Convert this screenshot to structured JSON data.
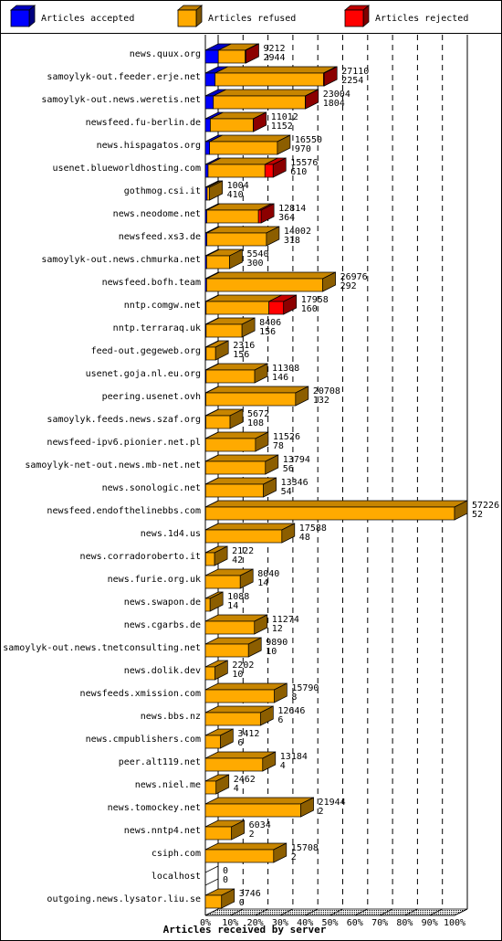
{
  "colors": {
    "accepted": "#0000ff",
    "refused": "#ffaa00",
    "rejected": "#ff0000"
  },
  "chart_data": {
    "type": "bar",
    "orientation": "horizontal",
    "stacked": true,
    "xlabel": "Articles received by server",
    "xlim": [
      0,
      100
    ],
    "x_unit": "%",
    "xticks": [
      "0%",
      "10%",
      "20%",
      "30%",
      "40%",
      "50%",
      "60%",
      "70%",
      "80%",
      "90%",
      "100%"
    ],
    "legend_position": "top",
    "series": [
      {
        "name": "Articles accepted",
        "color": "#0000ff"
      },
      {
        "name": "Articles refused",
        "color": "#ffaa00"
      },
      {
        "name": "Articles rejected",
        "color": "#ff0000"
      }
    ],
    "rows": [
      {
        "server": "news.quux.org",
        "total": 9212,
        "accepted": 2944,
        "acc_pct": 5.2,
        "ref_pct": 10.8,
        "rej_pct": 0.3
      },
      {
        "server": "samoylyk-out.feeder.erje.net",
        "total": 27110,
        "accepted": 2254,
        "acc_pct": 3.9,
        "ref_pct": 43.5,
        "rej_pct": 0.3
      },
      {
        "server": "samoylyk-out.news.weretis.net",
        "total": 23004,
        "accepted": 1804,
        "acc_pct": 3.2,
        "ref_pct": 36.9,
        "rej_pct": 0.1
      },
      {
        "server": "newsfeed.fu-berlin.de",
        "total": 11012,
        "accepted": 1152,
        "acc_pct": 2.0,
        "ref_pct": 17.2,
        "rej_pct": 0.1
      },
      {
        "server": "news.hispagatos.org",
        "total": 16550,
        "accepted": 970,
        "acc_pct": 1.7,
        "ref_pct": 27.2,
        "rej_pct": 0.0
      },
      {
        "server": "usenet.blueworldhosting.com",
        "total": 15576,
        "accepted": 610,
        "acc_pct": 1.1,
        "ref_pct": 22.8,
        "rej_pct": 3.3
      },
      {
        "server": "gothmog.csi.it",
        "total": 1004,
        "accepted": 410,
        "acc_pct": 0.7,
        "ref_pct": 1.0,
        "rej_pct": 0.0
      },
      {
        "server": "news.neodome.net",
        "total": 12814,
        "accepted": 364,
        "acc_pct": 0.6,
        "ref_pct": 20.7,
        "rej_pct": 1.1
      },
      {
        "server": "newsfeed.xs3.de",
        "total": 14002,
        "accepted": 318,
        "acc_pct": 0.6,
        "ref_pct": 23.9,
        "rej_pct": 0.0
      },
      {
        "server": "samoylyk-out.news.chmurka.net",
        "total": 5540,
        "accepted": 300,
        "acc_pct": 0.5,
        "ref_pct": 9.2,
        "rej_pct": 0.0
      },
      {
        "server": "newsfeed.bofh.team",
        "total": 26976,
        "accepted": 292,
        "acc_pct": 0.5,
        "ref_pct": 46.6,
        "rej_pct": 0.0
      },
      {
        "server": "nntp.comgw.net",
        "total": 17958,
        "accepted": 160,
        "acc_pct": 0.3,
        "ref_pct": 25.2,
        "rej_pct": 5.9
      },
      {
        "server": "nntp.terraraq.uk",
        "total": 8406,
        "accepted": 156,
        "acc_pct": 0.3,
        "ref_pct": 14.4,
        "rej_pct": 0.0
      },
      {
        "server": "feed-out.gegeweb.org",
        "total": 2316,
        "accepted": 156,
        "acc_pct": 0.3,
        "ref_pct": 3.8,
        "rej_pct": 0.0
      },
      {
        "server": "usenet.goja.nl.eu.org",
        "total": 11308,
        "accepted": 146,
        "acc_pct": 0.3,
        "ref_pct": 19.5,
        "rej_pct": 0.0
      },
      {
        "server": "peering.usenet.ovh",
        "total": 20708,
        "accepted": 132,
        "acc_pct": 0.2,
        "ref_pct": 36.0,
        "rej_pct": 0.0
      },
      {
        "server": "samoylyk.feeds.news.szaf.org",
        "total": 5672,
        "accepted": 108,
        "acc_pct": 0.2,
        "ref_pct": 9.7,
        "rej_pct": 0.0
      },
      {
        "server": "newsfeed-ipv6.pionier.net.pl",
        "total": 11526,
        "accepted": 78,
        "acc_pct": 0.1,
        "ref_pct": 20.0,
        "rej_pct": 0.0
      },
      {
        "server": "samoylyk-net-out.news.mb-net.net",
        "total": 13794,
        "accepted": 56,
        "acc_pct": 0.1,
        "ref_pct": 24.0,
        "rej_pct": 0.0
      },
      {
        "server": "news.sonologic.net",
        "total": 13346,
        "accepted": 54,
        "acc_pct": 0.1,
        "ref_pct": 23.2,
        "rej_pct": 0.0
      },
      {
        "server": "newsfeed.endofthelinebbs.com",
        "total": 57226,
        "accepted": 52,
        "acc_pct": 0.1,
        "ref_pct": 99.9,
        "rej_pct": 0.0
      },
      {
        "server": "news.1d4.us",
        "total": 17588,
        "accepted": 48,
        "acc_pct": 0.1,
        "ref_pct": 30.6,
        "rej_pct": 0.0
      },
      {
        "server": "news.corradoroberto.it",
        "total": 2122,
        "accepted": 42,
        "acc_pct": 0.1,
        "ref_pct": 3.6,
        "rej_pct": 0.0
      },
      {
        "server": "news.furie.org.uk",
        "total": 8040,
        "accepted": 14,
        "acc_pct": 0.0,
        "ref_pct": 14.0,
        "rej_pct": 0.0
      },
      {
        "server": "news.swapon.de",
        "total": 1088,
        "accepted": 14,
        "acc_pct": 0.0,
        "ref_pct": 1.9,
        "rej_pct": 0.0
      },
      {
        "server": "news.cgarbs.de",
        "total": 11274,
        "accepted": 12,
        "acc_pct": 0.0,
        "ref_pct": 19.7,
        "rej_pct": 0.0
      },
      {
        "server": "samoylyk-out.news.tnetconsulting.net",
        "total": 9890,
        "accepted": 10,
        "acc_pct": 0.0,
        "ref_pct": 17.3,
        "rej_pct": 0.0
      },
      {
        "server": "news.dolik.dev",
        "total": 2202,
        "accepted": 10,
        "acc_pct": 0.0,
        "ref_pct": 3.8,
        "rej_pct": 0.0
      },
      {
        "server": "newsfeeds.xmission.com",
        "total": 15790,
        "accepted": 8,
        "acc_pct": 0.0,
        "ref_pct": 27.6,
        "rej_pct": 0.0
      },
      {
        "server": "news.bbs.nz",
        "total": 12646,
        "accepted": 6,
        "acc_pct": 0.0,
        "ref_pct": 22.1,
        "rej_pct": 0.0
      },
      {
        "server": "news.cmpublishers.com",
        "total": 3412,
        "accepted": 6,
        "acc_pct": 0.0,
        "ref_pct": 6.0,
        "rej_pct": 0.0
      },
      {
        "server": "peer.alt119.net",
        "total": 13184,
        "accepted": 4,
        "acc_pct": 0.0,
        "ref_pct": 23.0,
        "rej_pct": 0.0
      },
      {
        "server": "news.niel.me",
        "total": 2462,
        "accepted": 4,
        "acc_pct": 0.0,
        "ref_pct": 4.3,
        "rej_pct": 0.0
      },
      {
        "server": "news.tomockey.net",
        "total": 21944,
        "accepted": 2,
        "acc_pct": 0.0,
        "ref_pct": 38.3,
        "rej_pct": 0.0
      },
      {
        "server": "news.nntp4.net",
        "total": 6034,
        "accepted": 2,
        "acc_pct": 0.0,
        "ref_pct": 10.5,
        "rej_pct": 0.0
      },
      {
        "server": "csiph.com",
        "total": 15708,
        "accepted": 2,
        "acc_pct": 0.0,
        "ref_pct": 27.4,
        "rej_pct": 0.0
      },
      {
        "server": "localhost",
        "total": 0,
        "accepted": 0,
        "acc_pct": 0.0,
        "ref_pct": 0.0,
        "rej_pct": 0.0
      },
      {
        "server": "outgoing.news.lysator.liu.se",
        "total": 3746,
        "accepted": 0,
        "acc_pct": 0.0,
        "ref_pct": 6.5,
        "rej_pct": 0.0
      }
    ]
  }
}
